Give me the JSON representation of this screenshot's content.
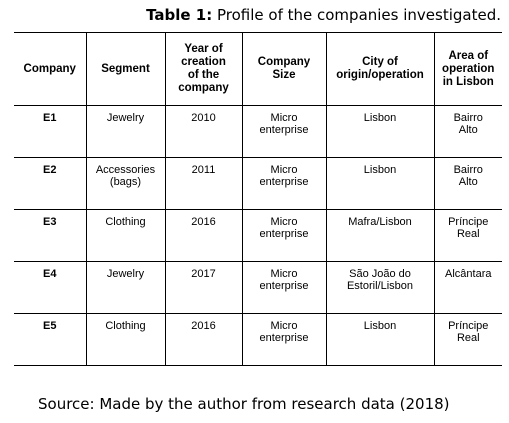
{
  "caption": {
    "label": "Table 1:",
    "text": " Profile of the companies investigated."
  },
  "table": {
    "header": [
      "Company",
      "Segment",
      [
        "Year of",
        "creation",
        "of the",
        "company"
      ],
      [
        "Company",
        "Size"
      ],
      [
        "City of",
        "origin/operation"
      ],
      [
        "Area of",
        "operation",
        "in Lisbon"
      ]
    ],
    "rows": [
      [
        "E1",
        "Jewelry",
        "2010",
        [
          "Micro",
          "enterprise"
        ],
        "Lisbon",
        [
          "Bairro",
          "Alto"
        ]
      ],
      [
        "E2",
        [
          "Accessories",
          "(bags)"
        ],
        "2011",
        [
          "Micro",
          "enterprise"
        ],
        "Lisbon",
        [
          "Bairro",
          "Alto"
        ]
      ],
      [
        "E3",
        "Clothing",
        "2016",
        [
          "Micro",
          "enterprise"
        ],
        "Mafra/Lisbon",
        [
          "Príncipe",
          "Real"
        ]
      ],
      [
        "E4",
        "Jewelry",
        "2017",
        [
          "Micro",
          "enterprise"
        ],
        [
          "São João do",
          "Estoril/Lisbon"
        ],
        "Alcântara"
      ],
      [
        "E5",
        "Clothing",
        "2016",
        [
          "Micro",
          "enterprise"
        ],
        "Lisbon",
        [
          "Príncipe",
          "Real"
        ]
      ]
    ]
  },
  "source": "Source: Made by the author from research data (2018)"
}
